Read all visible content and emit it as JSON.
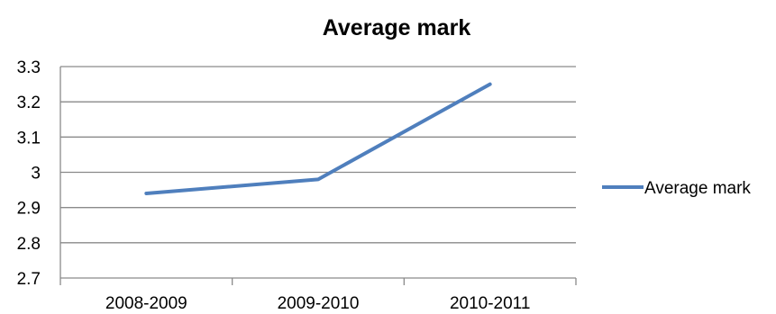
{
  "chart_data": {
    "type": "line",
    "title": "Average mark",
    "categories": [
      "2008-2009",
      "2009-2010",
      "2010-2011"
    ],
    "series": [
      {
        "name": "Average mark",
        "values": [
          2.94,
          2.98,
          3.25
        ],
        "color": "#4f7fbd"
      }
    ],
    "ylim": [
      2.7,
      3.3
    ],
    "yticks": [
      "2.7",
      "2.8",
      "2.9",
      "3",
      "3.1",
      "3.2",
      "3.3"
    ],
    "grid": true,
    "legend": "right"
  }
}
